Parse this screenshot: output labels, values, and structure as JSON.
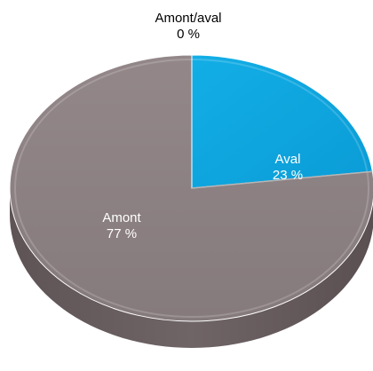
{
  "chart_data": {
    "type": "pie",
    "style": "3d",
    "slices": [
      {
        "name": "Aval",
        "value": 23,
        "label": "23 %",
        "color": "#0ea7e0"
      },
      {
        "name": "Amont/aval",
        "value": 0,
        "label": "0 %",
        "color": "#b8b4b4"
      },
      {
        "name": "Amont",
        "value": 77,
        "label": "77 %",
        "color": "#8a7d7f"
      }
    ]
  }
}
